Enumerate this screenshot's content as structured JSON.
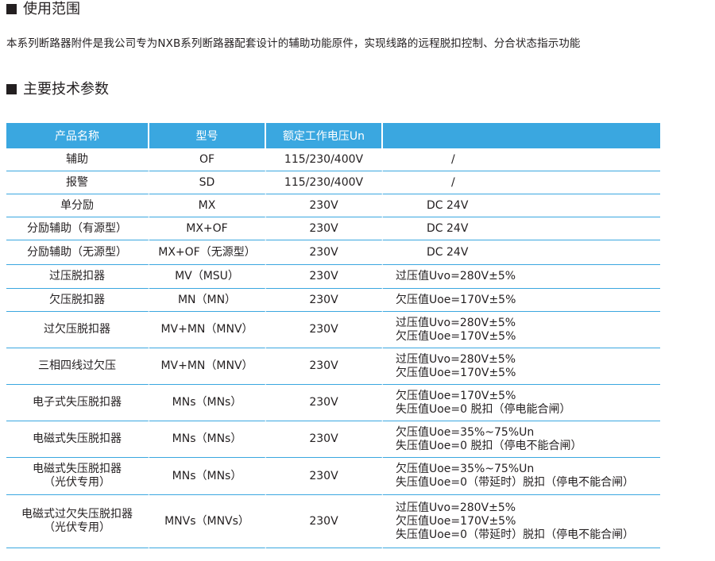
{
  "sections": {
    "usage_title": "使用范围",
    "usage_text": "本系列断路器附件是我公司专为NXB系列断路器配套设计的辅助功能原件，实现线路的远程脱扣控制、分合状态指示功能",
    "params_title": "主要技术参数"
  },
  "table": {
    "headers": [
      "产品名称",
      "型号",
      "额定工作电压Un",
      ""
    ],
    "rows": [
      {
        "name": [
          "辅助"
        ],
        "model": "OF",
        "voltage": "115/230/400V",
        "spec": [
          "/"
        ]
      },
      {
        "name": [
          "报警"
        ],
        "model": "SD",
        "voltage": "115/230/400V",
        "spec": [
          "/"
        ]
      },
      {
        "name": [
          "单分励"
        ],
        "model": "MX",
        "voltage": "230V",
        "spec": [
          "DC 24V"
        ]
      },
      {
        "name": [
          "分励辅助（有源型）"
        ],
        "model": "MX+OF",
        "voltage": "230V",
        "spec": [
          "DC 24V"
        ]
      },
      {
        "name": [
          "分励辅助（无源型）"
        ],
        "model": "MX+OF（无源型）",
        "voltage": "230V",
        "spec": [
          "DC 24V"
        ]
      },
      {
        "name": [
          "过压脱扣器"
        ],
        "model": "MV（MSU）",
        "voltage": "230V",
        "spec": [
          "过压值Uvo=280V±5%"
        ]
      },
      {
        "name": [
          "欠压脱扣器"
        ],
        "model": "MN（MN）",
        "voltage": "230V",
        "spec": [
          "欠压值Uoe=170V±5%"
        ]
      },
      {
        "name": [
          "过欠压脱扣器"
        ],
        "model": "MV+MN（MNV）",
        "voltage": "230V",
        "spec": [
          "过压值Uvo=280V±5%",
          "欠压值Uoe=170V±5%"
        ]
      },
      {
        "name": [
          "三相四线过欠压"
        ],
        "model": "MV+MN（MNV）",
        "voltage": "230V",
        "spec": [
          "过压值Uvo=280V±5%",
          "欠压值Uoe=170V±5%"
        ]
      },
      {
        "name": [
          "电子式失压脱扣器"
        ],
        "model": "MNs（MNs）",
        "voltage": "230V",
        "spec": [
          "欠压值Uoe=170V±5%",
          "失压值Uoe=0  脱扣（停电能合闸）"
        ]
      },
      {
        "name": [
          "电磁式失压脱扣器"
        ],
        "model": "MNs（MNs）",
        "voltage": "230V",
        "spec": [
          "欠压值Uoe=35%~75%Un",
          "失压值Uoe=0  脱扣（停电不能合闸）"
        ]
      },
      {
        "name": [
          "电磁式失压脱扣器",
          "（光伏专用）"
        ],
        "model": "MNs（MNs）",
        "voltage": "230V",
        "spec": [
          "欠压值Uoe=35%~75%Un",
          "失压值Uoe=0（带延时）脱扣（停电不能合闸）"
        ]
      },
      {
        "name": [
          "电磁式过欠失压脱扣器",
          "（光伏专用）"
        ],
        "model": "MNVs（MNVs）",
        "voltage": "230V",
        "spec": [
          "过压值Uvo=280V±5%",
          "欠压值Uoe=170V±5%",
          "失压值Uoe=0（带延时）脱扣（停电不能合闸）"
        ]
      }
    ]
  }
}
